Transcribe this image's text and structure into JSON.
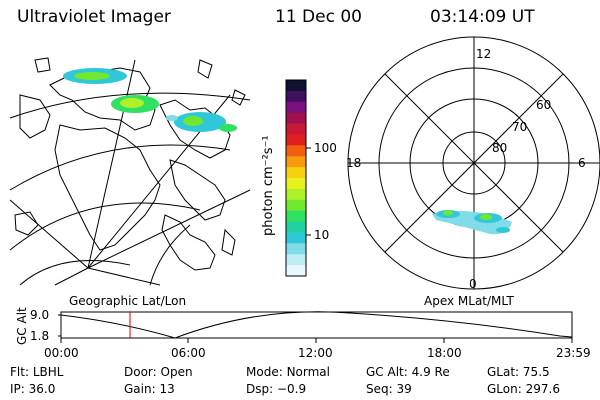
{
  "header": {
    "instrument": "Ultraviolet Imager",
    "date": "11 Dec 00",
    "time": "03:14:09 UT"
  },
  "colorbar": {
    "label": "photon cm⁻²s⁻¹",
    "ticks": [
      "100",
      "10"
    ],
    "colors": [
      "#101030",
      "#401060",
      "#7a1080",
      "#a01050",
      "#c81838",
      "#e02020",
      "#f06010",
      "#f89a10",
      "#f8d010",
      "#e8f020",
      "#b0f028",
      "#70e830",
      "#30e060",
      "#20d0a0",
      "#30c8d8",
      "#80dce8",
      "#c0ecf4",
      "#e8f8fc"
    ]
  },
  "map_labels": {
    "left": "Geographic Lat/Lon",
    "right": "Apex MLat/MLT"
  },
  "polar": {
    "mlt_labels": {
      "top": "12",
      "left": "18",
      "right": "6",
      "bottom": "0"
    },
    "lat_labels": [
      "60",
      "70",
      "80"
    ]
  },
  "altitude_plot": {
    "ylabel": "GC Alt",
    "y_ticks": [
      "9.0",
      "1.8"
    ],
    "x_ticks": [
      "00:00",
      "06:00",
      "12:00",
      "18:00",
      "23:59"
    ],
    "cursor_color": "#e00000"
  },
  "status": {
    "row1": [
      {
        "label": "Flt:",
        "value": "LBHL"
      },
      {
        "label": "Door:",
        "value": "Open"
      },
      {
        "label": "Mode:",
        "value": "Normal"
      },
      {
        "label": "GC Alt:",
        "value": "4.9 Re"
      },
      {
        "label": "GLat:",
        "value": "75.5"
      }
    ],
    "row2": [
      {
        "label": "IP:",
        "value": "36.0"
      },
      {
        "label": "Gain:",
        "value": "13"
      },
      {
        "label": "Dsp:",
        "value": "−0.9"
      },
      {
        "label": "Seq:",
        "value": "39"
      },
      {
        "label": "GLon:",
        "value": "297.6"
      }
    ]
  }
}
